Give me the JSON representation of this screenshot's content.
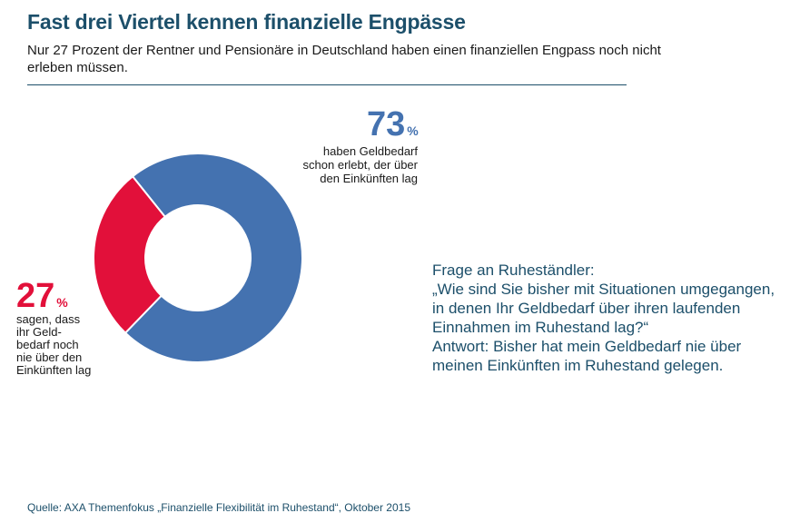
{
  "header": {
    "title": "Fast drei Viertel kennen finanzielle Engpässe",
    "subtitle": "Nur 27 Prozent der Rentner und Pensionäre in Deutschland haben einen finanziellen Engpass noch nicht erleben müssen."
  },
  "chart_data": {
    "type": "pie",
    "donut": true,
    "slices": [
      {
        "label": "haben Geldbedarf schon erlebt, der über den Einkünften lag",
        "value": 73,
        "color": "#4472b0"
      },
      {
        "label": "sagen, dass ihr Geldbedarf noch nie über den Einkünften lag",
        "value": 27,
        "color": "#e2103a"
      }
    ]
  },
  "labels": {
    "big_73": "73",
    "big_27": "27",
    "pct_symbol": "%",
    "desc_73": "haben Geldbedarf\nschon erlebt, der über\nden Einkünften lag",
    "desc_27": "sagen, dass\nihr  Geld-\nbedarf  noch\nnie über den\nEinkünften lag"
  },
  "question": {
    "question_text": "Frage an Ruheständler:\n„Wie sind Sie bisher mit Situationen umgegangen, in denen Ihr Geldbedarf über ihren laufenden Einnahmen im Ruhestand lag?“",
    "answer_text": "Antwort: Bisher hat mein Geldbedarf nie über meinen Einkünften im Ruhestand gelegen."
  },
  "footer": {
    "source": "Quelle: AXA Themenfokus „Finanzielle Flexibilität im Ruhestand“, Oktober 2015"
  }
}
